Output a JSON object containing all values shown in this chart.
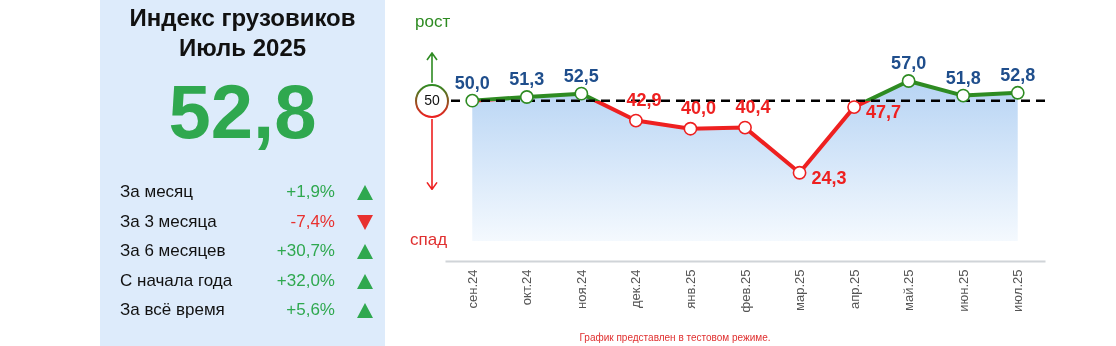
{
  "chart_data": [
    {
      "type": "other",
      "title": "Индекс грузовиков",
      "subtitle": "Июль 2025",
      "annotations": [
        "52,8",
        "За месяц",
        "За 3 месяца",
        "За 6 месяцев",
        "С начала года",
        "За всё время"
      ],
      "value_labels": [
        "+1,9%",
        "-7,4%",
        "+30,7%",
        "+32,0%",
        "+5,6%"
      ],
      "colors": [
        "#2fa84f",
        "#e8312f",
        "#2fa84f",
        "#2fa84f",
        "#2fa84f"
      ]
    },
    {
      "type": "area",
      "categories": [
        "сен.24",
        "окт.24",
        "ноя.24",
        "дек.24",
        "янв.25",
        "фев.25",
        "мар.25",
        "апр.25",
        "май.25",
        "июн.25",
        "июл.25"
      ],
      "series": [
        {
          "values": [
            50.0,
            51.3,
            52.5,
            42.9,
            40.0,
            40.4,
            24.3,
            47.7,
            57.0,
            51.8,
            52.8
          ],
          "value_labels": [
            "50,0",
            "51,3",
            "52,5",
            "42,9",
            "40,0",
            "40,4",
            "24,3",
            "47,7",
            "57,0",
            "51,8",
            "52,8"
          ],
          "colors": [
            "#2e8b22",
            "#2e8b22",
            "#2e8b22",
            "#ee2020",
            "#ee2020",
            "#ee2020",
            "#ee2020",
            "#ee2020",
            "#2e8b22",
            "#2e8b22",
            "#2e8b22"
          ]
        }
      ],
      "tick_labels": "x",
      "marker": "circle",
      "ref_lines": [
        {
          "axis": "y",
          "value": 50,
          "label": "50",
          "color": "#000000",
          "line_style": "dashed"
        }
      ],
      "annotations": [
        "рост",
        "спад",
        "График представлен в тестовом режиме."
      ]
    }
  ]
}
